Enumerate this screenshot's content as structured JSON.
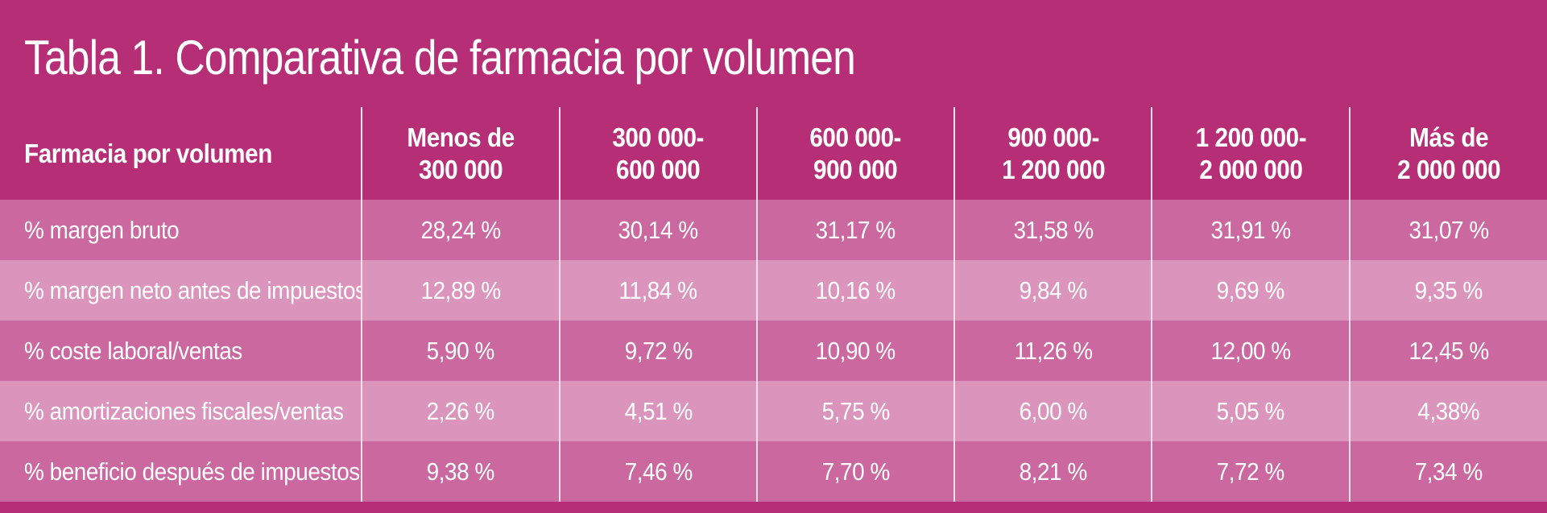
{
  "title": "Tabla 1. Comparativa de farmacia por volumen",
  "colors": {
    "header_bg": "#b62f76",
    "row_odd_bg": "#ca689f",
    "row_even_bg": "#db94bb",
    "text": "#ffffff"
  },
  "table": {
    "corner_header": "Farmacia por volumen",
    "columns": [
      {
        "line1": "Menos de",
        "line2": "300 000"
      },
      {
        "line1": "300 000-",
        "line2": "600 000"
      },
      {
        "line1": "600 000-",
        "line2": "900 000"
      },
      {
        "line1": "900 000-",
        "line2": "1 200 000"
      },
      {
        "line1": "1 200 000-",
        "line2": "2 000 000"
      },
      {
        "line1": "Más de",
        "line2": "2 000 000"
      }
    ],
    "rows": [
      {
        "label": "% margen bruto",
        "values": [
          "28,24 %",
          "30,14 %",
          "31,17 %",
          "31,58 %",
          "31,91 %",
          "31,07 %"
        ]
      },
      {
        "label": "% margen neto antes de impuestos",
        "values": [
          "12,89 %",
          "11,84 %",
          "10,16 %",
          "9,84 %",
          "9,69 %",
          "9,35 %"
        ]
      },
      {
        "label": "% coste laboral/ventas",
        "values": [
          "5,90 %",
          "9,72 %",
          "10,90 %",
          "11,26 %",
          "12,00 %",
          "12,45 %"
        ]
      },
      {
        "label": "% amortizaciones fiscales/ventas",
        "values": [
          "2,26 %",
          "4,51 %",
          "5,75 %",
          "6,00 %",
          "5,05 %",
          "4,38%"
        ]
      },
      {
        "label": "% beneficio después de impuestos",
        "values": [
          "9,38 %",
          "7,46 %",
          "7,70 %",
          "8,21 %",
          "7,72 %",
          "7,34 %"
        ]
      }
    ]
  }
}
